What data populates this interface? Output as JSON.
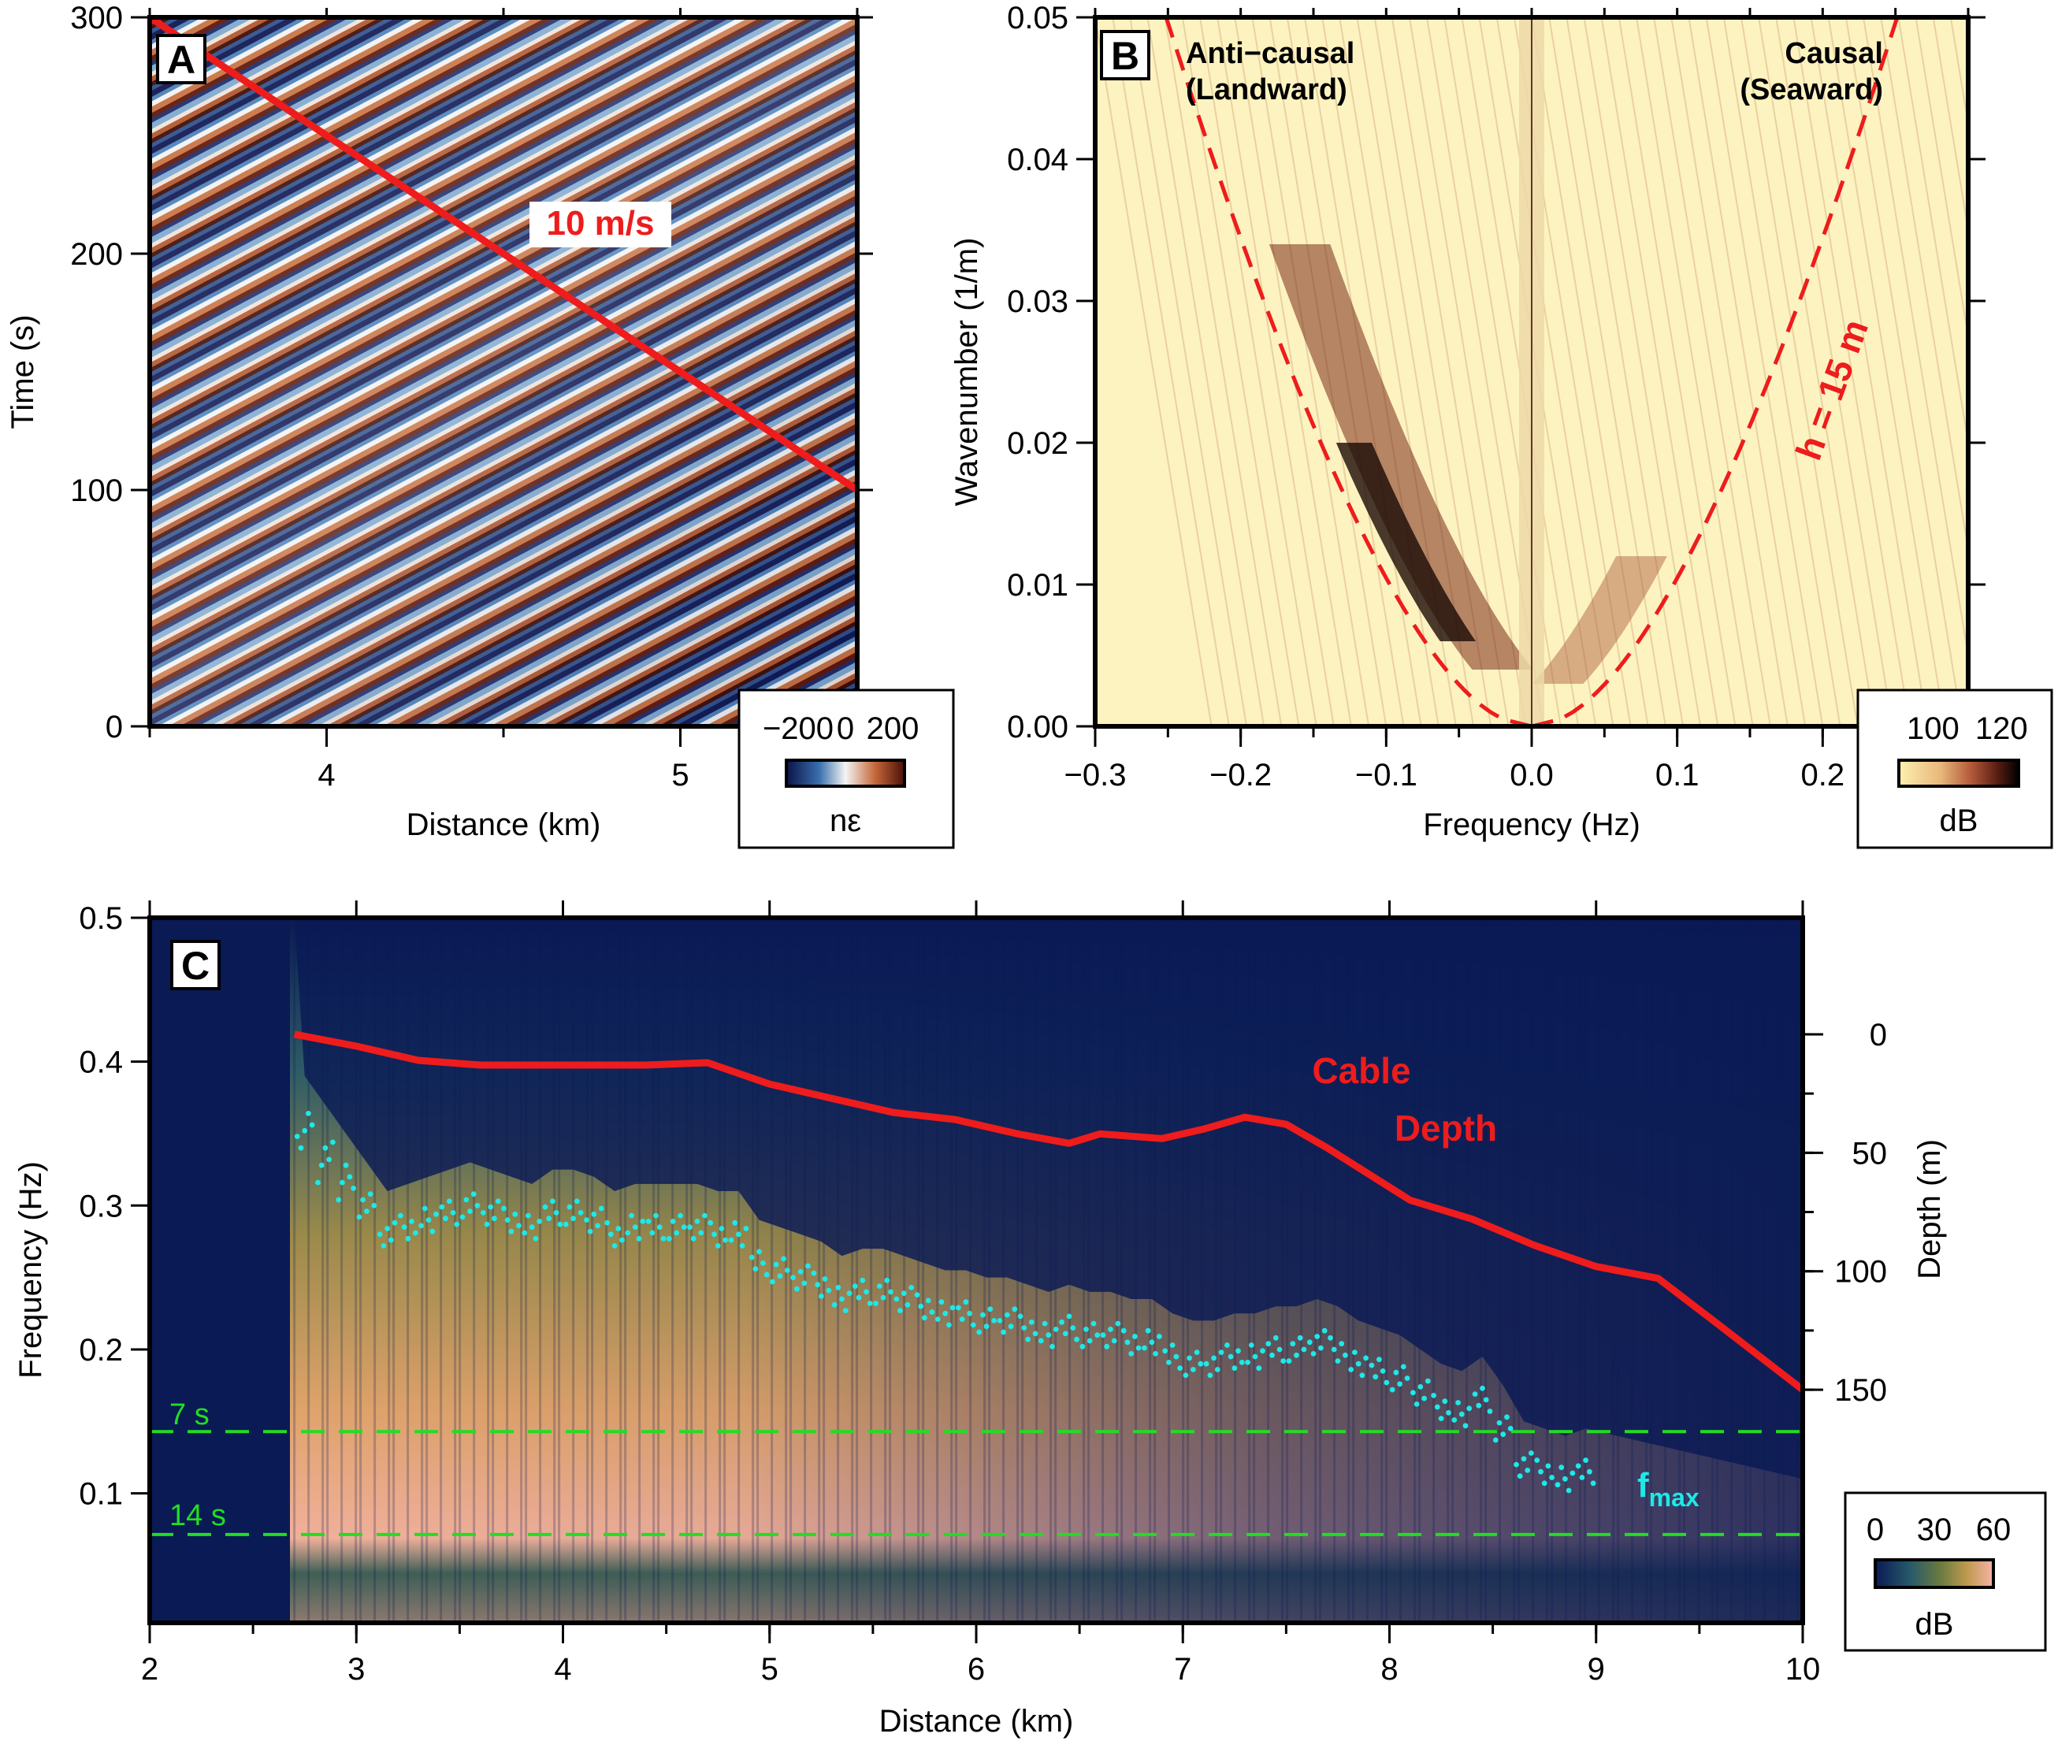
{
  "chart_data": [
    {
      "panel": "A",
      "type": "heatmap",
      "title": "",
      "xlabel": "Distance (km)",
      "ylabel": "Time (s)",
      "xlim": [
        3.5,
        5.5
      ],
      "ylim": [
        0,
        300
      ],
      "x_ticks": [
        4,
        5
      ],
      "y_ticks": [
        0,
        100,
        200,
        300
      ],
      "colorbar": {
        "label": "nε",
        "ticks": [
          -200,
          0,
          200
        ],
        "range": [
          -250,
          250
        ],
        "colors": [
          "#0b1246",
          "#3a6fae",
          "#f4f4f4",
          "#c5683a",
          "#4a0f08"
        ]
      },
      "overlay_line": {
        "label": "10 m/s",
        "color": "#ee1c1c",
        "x": [
          3.5,
          5.5
        ],
        "y": [
          300,
          100
        ]
      },
      "grid": false
    },
    {
      "panel": "B",
      "type": "heatmap",
      "title": "",
      "xlabel": "Frequency (Hz)",
      "ylabel": "Wavenumber (1/m)",
      "xlim": [
        -0.3,
        0.3
      ],
      "ylim": [
        0,
        0.05
      ],
      "x_ticks": [
        -0.3,
        -0.2,
        -0.1,
        0.0,
        0.1,
        0.2
      ],
      "x_tick_labels": [
        "−0.3",
        "−0.2",
        "−0.1",
        "0.0",
        "0.1",
        "0.2"
      ],
      "y_ticks": [
        0.0,
        0.01,
        0.02,
        0.03,
        0.04,
        0.05
      ],
      "y_tick_labels": [
        "0.00",
        "0.01",
        "0.02",
        "0.03",
        "0.04",
        "0.05"
      ],
      "colorbar": {
        "label": "dB",
        "ticks": [
          100,
          120
        ],
        "range": [
          90,
          125
        ],
        "colors": [
          "#fdf0b0",
          "#e8b77a",
          "#b45a3a",
          "#5a1e12",
          "#000000"
        ]
      },
      "annotations": [
        {
          "line1": "Anti−causal",
          "line2": "(Landward)"
        },
        {
          "line1": "Causal",
          "line2": "(Seaward)"
        }
      ],
      "dispersion_curve": {
        "label": "h = 15 m",
        "color": "#ee1c1c",
        "style": "dashed"
      },
      "grid": false
    },
    {
      "panel": "C",
      "type": "heatmap",
      "title": "",
      "xlabel": "Distance (km)",
      "ylabel": "Frequency (Hz)",
      "ylabel_right": "Depth (m)",
      "xlim": [
        2,
        10
      ],
      "ylim": [
        0.01,
        0.5
      ],
      "x_ticks": [
        2,
        3,
        4,
        5,
        6,
        7,
        8,
        9,
        10
      ],
      "y_ticks": [
        0.1,
        0.2,
        0.3,
        0.4,
        0.5
      ],
      "y_right_ticks": [
        0,
        50,
        100,
        150
      ],
      "colorbar": {
        "label": "dB",
        "ticks": [
          0,
          30,
          60
        ],
        "range": [
          0,
          60
        ],
        "colors": [
          "#0a1a55",
          "#285a6a",
          "#6a7a40",
          "#c09a50",
          "#f5b4a8"
        ]
      },
      "reference_lines": [
        {
          "label": "7 s",
          "frequency": 0.1429,
          "color": "#22dd22"
        },
        {
          "label": "14 s",
          "frequency": 0.0714,
          "color": "#22dd22"
        }
      ],
      "series": [
        {
          "name": "Cable Depth",
          "legend": {
            "line1": "Cable",
            "line2": "Depth"
          },
          "color": "#ee1c1c",
          "x": [
            2.7,
            3.0,
            3.3,
            3.6,
            4.0,
            4.4,
            4.7,
            5.0,
            5.3,
            5.6,
            5.9,
            6.2,
            6.45,
            6.6,
            6.9,
            7.1,
            7.3,
            7.5,
            7.7,
            7.9,
            8.1,
            8.4,
            8.7,
            9.0,
            9.3,
            9.6,
            10.0
          ],
          "depth_m": [
            0,
            5,
            11,
            13,
            13,
            13,
            12,
            21,
            27,
            33,
            36,
            42,
            46,
            42,
            44,
            40,
            35,
            38,
            48,
            59,
            70,
            78,
            89,
            98,
            103,
            123,
            150
          ]
        },
        {
          "name": "f_max",
          "label_main": "f",
          "label_sub": "max",
          "color": "#1ee8e8",
          "type": "scatter",
          "x": [
            2.75,
            2.85,
            2.95,
            3.05,
            3.15,
            3.25,
            3.35,
            3.45,
            3.55,
            3.65,
            3.75,
            3.85,
            3.95,
            4.05,
            4.15,
            4.25,
            4.35,
            4.45,
            4.55,
            4.65,
            4.75,
            4.85,
            4.95,
            5.05,
            5.15,
            5.25,
            5.35,
            5.45,
            5.55,
            5.65,
            5.75,
            5.85,
            5.95,
            6.05,
            6.15,
            6.25,
            6.35,
            6.45,
            6.55,
            6.65,
            6.75,
            6.85,
            6.95,
            7.05,
            7.15,
            7.25,
            7.35,
            7.45,
            7.55,
            7.65,
            7.75,
            7.85,
            7.95,
            8.05,
            8.15,
            8.25,
            8.35,
            8.45,
            8.55,
            8.65,
            8.75,
            8.85,
            8.95
          ],
          "y": [
            0.36,
            0.34,
            0.32,
            0.3,
            0.28,
            0.285,
            0.29,
            0.295,
            0.3,
            0.295,
            0.29,
            0.285,
            0.295,
            0.295,
            0.29,
            0.28,
            0.285,
            0.285,
            0.285,
            0.285,
            0.28,
            0.28,
            0.26,
            0.255,
            0.25,
            0.245,
            0.235,
            0.24,
            0.24,
            0.235,
            0.23,
            0.225,
            0.225,
            0.22,
            0.22,
            0.215,
            0.21,
            0.215,
            0.21,
            0.21,
            0.205,
            0.205,
            0.195,
            0.19,
            0.19,
            0.195,
            0.195,
            0.2,
            0.2,
            0.205,
            0.2,
            0.19,
            0.185,
            0.18,
            0.17,
            0.16,
            0.155,
            0.165,
            0.145,
            0.12,
            0.115,
            0.11,
            0.115
          ]
        }
      ],
      "grid": false
    }
  ]
}
